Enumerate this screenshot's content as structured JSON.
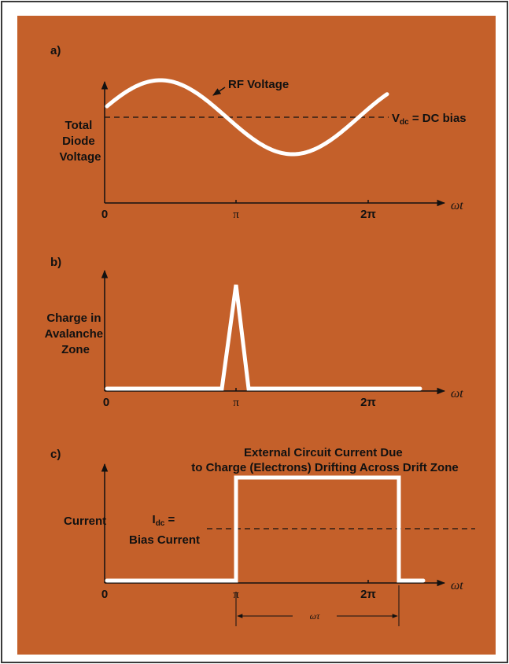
{
  "colors": {
    "background": "#c4602a",
    "curve": "#ffffff",
    "axis": "#111111",
    "dashed": "#111111",
    "frame": "#3a3a3a"
  },
  "panel_a": {
    "tag": "a)",
    "ylabel_lines": [
      "Total",
      "Diode",
      "Voltage"
    ],
    "curve_label": "RF Voltage",
    "bias_label": "V",
    "bias_label_sub": "dc",
    "bias_label_rest": " = DC bias",
    "x_ticks": [
      "0",
      "π",
      "2π"
    ],
    "x_axis_label": "ωt"
  },
  "panel_b": {
    "tag": "b)",
    "ylabel_lines": [
      "Charge in",
      "Avalanche",
      "Zone"
    ],
    "x_ticks": [
      "0",
      "π",
      "2π"
    ],
    "x_axis_label": "ωt"
  },
  "panel_c": {
    "tag": "c)",
    "title_lines": [
      "External Circuit Current Due",
      "to Charge (Electrons) Drifting Across Drift Zone"
    ],
    "ylabel": "Current",
    "bias_label_line1": "I",
    "bias_label_line1_sub": "dc",
    "bias_label_line1_rest": " =",
    "bias_label_line2": "Bias Current",
    "x_ticks": [
      "0",
      "π",
      "2π"
    ],
    "x_axis_label": "ωt",
    "dimension_label": "ωτ"
  }
}
